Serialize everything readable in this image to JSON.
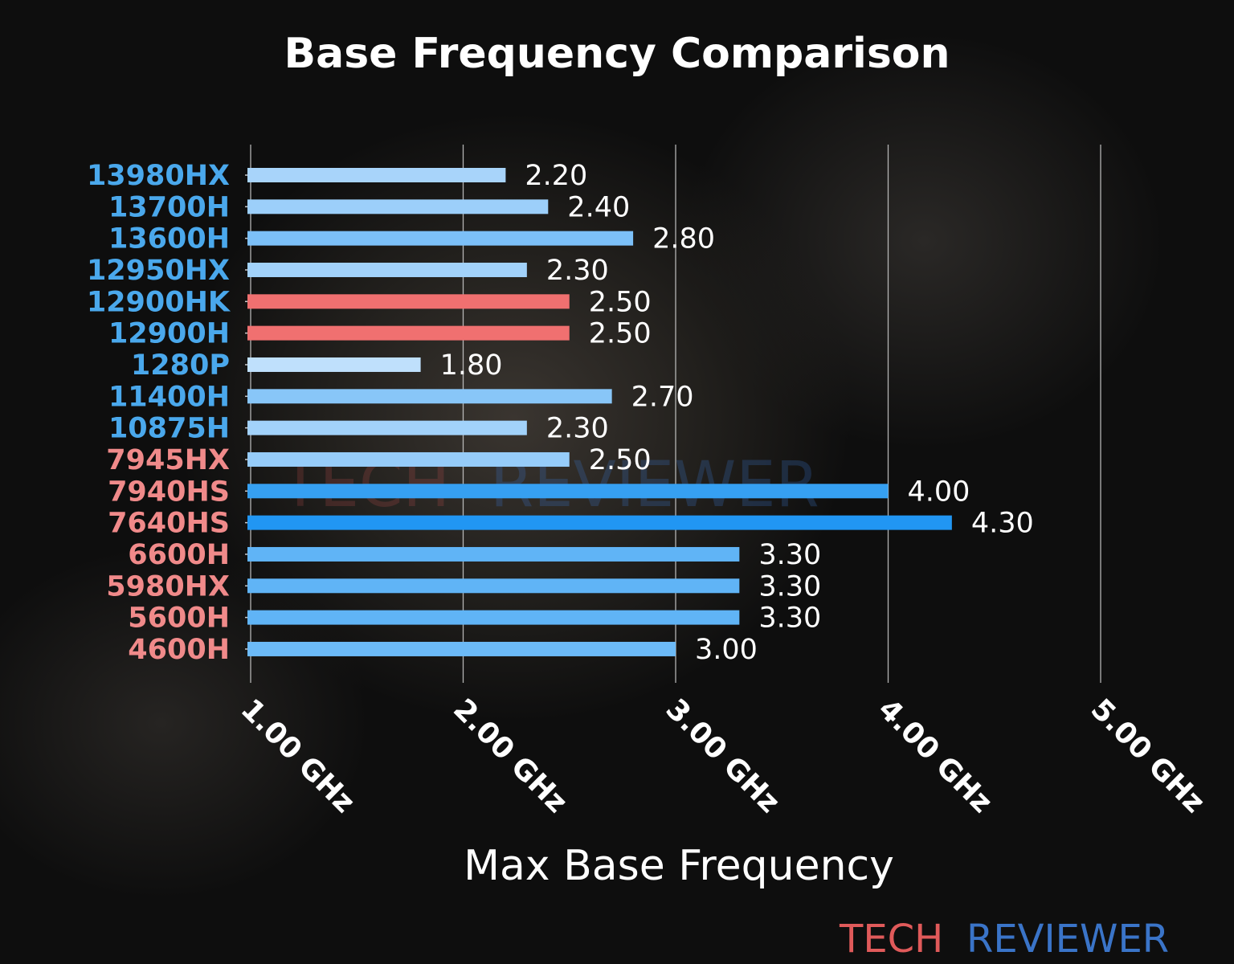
{
  "chart_data": {
    "type": "bar",
    "orientation": "horizontal",
    "title": "Base Frequency Comparison",
    "xlabel": "Max Base Frequency",
    "ylabel": "",
    "xlim": [
      1.0,
      5.0
    ],
    "xticks": [
      1,
      2,
      3,
      4,
      5
    ],
    "xtick_labels": [
      "1.00 GHz",
      "2.00 GHz",
      "3.00 GHz",
      "4.00 GHz",
      "5.00 GHz"
    ],
    "grid": "vertical",
    "categories": [
      "13980HX",
      "13700H",
      "13600H",
      "12950HX",
      "12900HK",
      "12900H",
      "1280P",
      "11400H",
      "10875H",
      "7945HX",
      "7940HS",
      "7640HS",
      "6600H",
      "5980HX",
      "5600H",
      "4600H"
    ],
    "values": [
      2.2,
      2.4,
      2.8,
      2.3,
      2.5,
      2.5,
      1.8,
      2.7,
      2.3,
      2.5,
      4.0,
      4.3,
      3.3,
      3.3,
      3.3,
      3.0
    ],
    "data_labels": [
      "2.20",
      "2.40",
      "2.80",
      "2.30",
      "2.50",
      "2.50",
      "1.80",
      "2.70",
      "2.30",
      "2.50",
      "4.00",
      "4.30",
      "3.30",
      "3.30",
      "3.30",
      "3.00"
    ],
    "bar_colors": [
      "#a8d4fa",
      "#9ccffa",
      "#7cc0f8",
      "#a2d2fa",
      "#f07070",
      "#f07070",
      "#bfe0fc",
      "#88c6f8",
      "#a2d2fa",
      "#96ccf9",
      "#36a0f2",
      "#2196f3",
      "#60b4f6",
      "#60b4f6",
      "#60b4f6",
      "#6cbaf7"
    ],
    "label_colors": [
      "#4aa8ec",
      "#4aa8ec",
      "#4aa8ec",
      "#4aa8ec",
      "#4aa8ec",
      "#4aa8ec",
      "#4aa8ec",
      "#4aa8ec",
      "#4aa8ec",
      "#f08a8a",
      "#f08a8a",
      "#f08a8a",
      "#f08a8a",
      "#f08a8a",
      "#f08a8a",
      "#f08a8a"
    ]
  },
  "watermark": {
    "part1": "TECH",
    "part2": "REVIEWER",
    "color1": "#e05a5a",
    "color2": "#3a74c8"
  }
}
